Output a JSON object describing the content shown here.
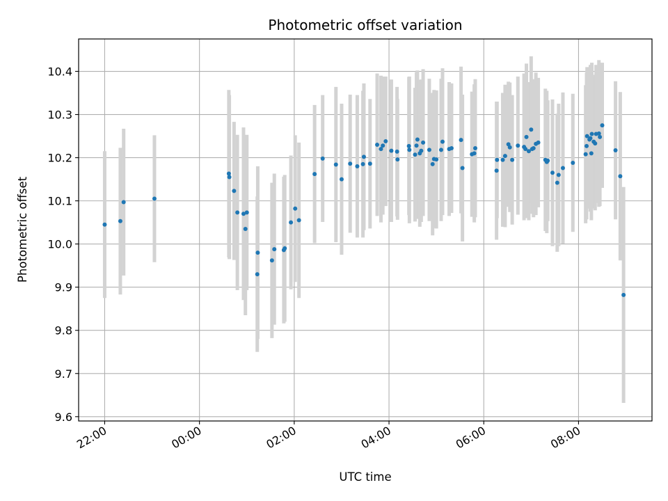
{
  "chart_data": {
    "type": "scatter",
    "title": "Photometric offset variation",
    "xlabel": "UTC time",
    "ylabel": "Photometric offset",
    "x_unit": "hours relative to 00:00 UTC (negative = previous evening)",
    "xlim": [
      -2.55,
      9.55
    ],
    "ylim": [
      9.59,
      10.475
    ],
    "grid": true,
    "x_ticks": [
      {
        "value": -2,
        "label": "22:00"
      },
      {
        "value": 0,
        "label": "00:00"
      },
      {
        "value": 2,
        "label": "02:00"
      },
      {
        "value": 4,
        "label": "04:00"
      },
      {
        "value": 6,
        "label": "06:00"
      },
      {
        "value": 8,
        "label": "08:00"
      }
    ],
    "y_ticks": [
      {
        "value": 9.6,
        "label": "9.6"
      },
      {
        "value": 9.7,
        "label": "9.7"
      },
      {
        "value": 9.8,
        "label": "9.8"
      },
      {
        "value": 9.9,
        "label": "9.9"
      },
      {
        "value": 10.0,
        "label": "10.0"
      },
      {
        "value": 10.1,
        "label": "10.1"
      },
      {
        "value": 10.2,
        "label": "10.2"
      },
      {
        "value": 10.3,
        "label": "10.3"
      },
      {
        "value": 10.4,
        "label": "10.4"
      }
    ],
    "colors": {
      "points": "#1f77b4",
      "errorbars": "#d3d3d3",
      "grid": "#b0b0b0"
    },
    "points": [
      [
        -2.0,
        10.045,
        0.17
      ],
      [
        -1.67,
        10.053,
        0.17
      ],
      [
        -1.6,
        10.097,
        0.17
      ],
      [
        -0.95,
        10.105,
        0.147
      ],
      [
        0.62,
        10.163,
        0.194
      ],
      [
        0.63,
        10.155,
        0.19
      ],
      [
        0.73,
        10.123,
        0.16
      ],
      [
        0.8,
        10.073,
        0.18
      ],
      [
        0.93,
        10.07,
        0.2
      ],
      [
        0.97,
        10.035,
        0.2
      ],
      [
        1.0,
        10.073,
        0.18
      ],
      [
        1.22,
        9.93,
        0.18
      ],
      [
        1.23,
        9.98,
        0.2
      ],
      [
        1.53,
        9.962,
        0.18
      ],
      [
        1.58,
        9.988,
        0.175
      ],
      [
        1.78,
        9.986,
        0.17
      ],
      [
        1.8,
        9.99,
        0.17
      ],
      [
        1.93,
        10.05,
        0.155
      ],
      [
        2.02,
        10.082,
        0.17
      ],
      [
        2.1,
        10.055,
        0.18
      ],
      [
        2.43,
        10.162,
        0.16
      ],
      [
        2.6,
        10.198,
        0.147
      ],
      [
        2.88,
        10.184,
        0.18
      ],
      [
        3.0,
        10.15,
        0.175
      ],
      [
        3.18,
        10.186,
        0.16
      ],
      [
        3.33,
        10.18,
        0.165
      ],
      [
        3.45,
        10.185,
        0.17
      ],
      [
        3.47,
        10.202,
        0.17
      ],
      [
        3.6,
        10.186,
        0.15
      ],
      [
        3.75,
        10.23,
        0.165
      ],
      [
        3.83,
        10.22,
        0.17
      ],
      [
        3.87,
        10.228,
        0.16
      ],
      [
        3.93,
        10.238,
        0.15
      ],
      [
        4.05,
        10.216,
        0.165
      ],
      [
        4.17,
        10.214,
        0.15
      ],
      [
        4.18,
        10.196,
        0.14
      ],
      [
        4.42,
        10.227,
        0.16
      ],
      [
        4.43,
        10.218,
        0.17
      ],
      [
        4.55,
        10.207,
        0.155
      ],
      [
        4.58,
        10.228,
        0.17
      ],
      [
        4.6,
        10.242,
        0.16
      ],
      [
        4.65,
        10.21,
        0.17
      ],
      [
        4.68,
        10.216,
        0.165
      ],
      [
        4.72,
        10.235,
        0.17
      ],
      [
        4.85,
        10.218,
        0.165
      ],
      [
        4.92,
        10.185,
        0.165
      ],
      [
        4.95,
        10.197,
        0.16
      ],
      [
        5.0,
        10.196,
        0.16
      ],
      [
        5.1,
        10.218,
        0.165
      ],
      [
        5.13,
        10.237,
        0.17
      ],
      [
        5.27,
        10.22,
        0.155
      ],
      [
        5.32,
        10.222,
        0.15
      ],
      [
        5.52,
        10.241,
        0.17
      ],
      [
        5.55,
        10.176,
        0.17
      ],
      [
        5.75,
        10.208,
        0.145
      ],
      [
        5.8,
        10.21,
        0.16
      ],
      [
        5.82,
        10.222,
        0.16
      ],
      [
        6.27,
        10.17,
        0.16
      ],
      [
        6.28,
        10.195,
        0.135
      ],
      [
        6.4,
        10.195,
        0.155
      ],
      [
        6.45,
        10.204,
        0.165
      ],
      [
        6.52,
        10.231,
        0.145
      ],
      [
        6.55,
        10.224,
        0.15
      ],
      [
        6.6,
        10.195,
        0.15
      ],
      [
        6.72,
        10.228,
        0.16
      ],
      [
        6.85,
        10.225,
        0.17
      ],
      [
        6.88,
        10.22,
        0.16
      ],
      [
        6.9,
        10.248,
        0.17
      ],
      [
        6.95,
        10.215,
        0.16
      ],
      [
        7.0,
        10.265,
        0.17
      ],
      [
        7.02,
        10.22,
        0.15
      ],
      [
        7.05,
        10.222,
        0.16
      ],
      [
        7.1,
        10.232,
        0.165
      ],
      [
        7.15,
        10.235,
        0.15
      ],
      [
        7.3,
        10.195,
        0.165
      ],
      [
        7.33,
        10.19,
        0.165
      ],
      [
        7.35,
        10.193,
        0.14
      ],
      [
        7.45,
        10.165,
        0.17
      ],
      [
        7.55,
        10.142,
        0.16
      ],
      [
        7.58,
        10.16,
        0.165
      ],
      [
        7.67,
        10.176,
        0.175
      ],
      [
        7.88,
        10.188,
        0.16
      ],
      [
        8.15,
        10.208,
        0.16
      ],
      [
        8.17,
        10.227,
        0.17
      ],
      [
        8.18,
        10.25,
        0.16
      ],
      [
        8.23,
        10.242,
        0.16
      ],
      [
        8.25,
        10.245,
        0.17
      ],
      [
        8.27,
        10.21,
        0.155
      ],
      [
        8.28,
        10.255,
        0.165
      ],
      [
        8.32,
        10.237,
        0.155
      ],
      [
        8.35,
        10.233,
        0.155
      ],
      [
        8.37,
        10.255,
        0.16
      ],
      [
        8.43,
        10.256,
        0.17
      ],
      [
        8.45,
        10.248,
        0.16
      ],
      [
        8.5,
        10.275,
        0.145
      ],
      [
        8.78,
        10.217,
        0.16
      ],
      [
        8.88,
        10.157,
        0.195
      ],
      [
        8.95,
        9.882,
        0.25
      ]
    ]
  }
}
